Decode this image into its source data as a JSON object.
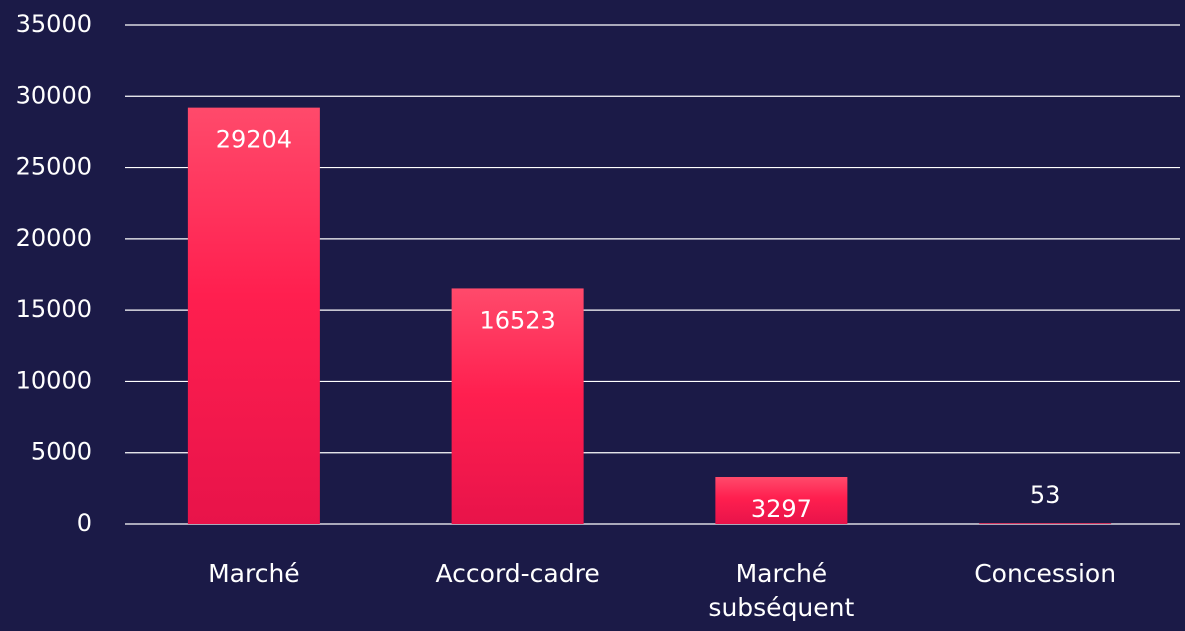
{
  "chart_data": {
    "type": "bar",
    "categories": [
      "Marché",
      "Accord-cadre",
      "Marché subséquent",
      "Concession"
    ],
    "values": [
      29204,
      16523,
      3297,
      53
    ],
    "color": "#ff2455",
    "ylim": [
      0,
      35000
    ],
    "yticks": [
      0,
      5000,
      10000,
      15000,
      20000,
      25000,
      30000,
      35000
    ],
    "grid": true
  }
}
